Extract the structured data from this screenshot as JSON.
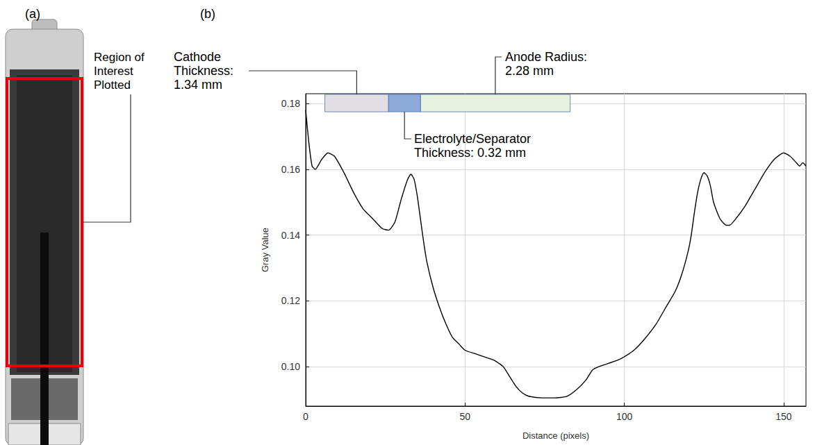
{
  "panel_labels": {
    "a": "(a)",
    "b": "(b)"
  },
  "region_note": "Region of\nInterest\nPlotted",
  "chart_data": {
    "type": "line",
    "x_label": "Distance (pixels)",
    "y_label": "Gray Value",
    "color": "#000000",
    "x": [
      0,
      1,
      2,
      3,
      5,
      7,
      9,
      12,
      15,
      18,
      21,
      24,
      26,
      28,
      30,
      32,
      33,
      34,
      35,
      36,
      37,
      38,
      40,
      42,
      44,
      46,
      48,
      50,
      53,
      56,
      59,
      62,
      64,
      66,
      68,
      70,
      74,
      78,
      82,
      85,
      88,
      90,
      92,
      95,
      98,
      100,
      103,
      106,
      110,
      113,
      116,
      118,
      120,
      121,
      122,
      123,
      124,
      125,
      126,
      127,
      128,
      130,
      132,
      133,
      135,
      138,
      141,
      144,
      147,
      150,
      152,
      154,
      155,
      156,
      157
    ],
    "values": [
      0.178,
      0.168,
      0.161,
      0.16,
      0.163,
      0.165,
      0.164,
      0.159,
      0.153,
      0.148,
      0.145,
      0.142,
      0.1415,
      0.144,
      0.151,
      0.157,
      0.1585,
      0.157,
      0.152,
      0.145,
      0.138,
      0.132,
      0.124,
      0.118,
      0.113,
      0.109,
      0.107,
      0.105,
      0.104,
      0.103,
      0.102,
      0.1,
      0.097,
      0.094,
      0.092,
      0.091,
      0.0905,
      0.0905,
      0.091,
      0.093,
      0.096,
      0.099,
      0.1,
      0.101,
      0.102,
      0.103,
      0.105,
      0.108,
      0.113,
      0.118,
      0.123,
      0.128,
      0.135,
      0.14,
      0.147,
      0.153,
      0.157,
      0.159,
      0.158,
      0.155,
      0.15,
      0.145,
      0.143,
      0.143,
      0.145,
      0.149,
      0.154,
      0.159,
      0.163,
      0.165,
      0.164,
      0.162,
      0.161,
      0.162,
      0.161
    ],
    "xlim": [
      0,
      157
    ],
    "ylim": [
      0.088,
      0.183
    ],
    "xticks": [
      0,
      50,
      100,
      150
    ],
    "yticks": [
      {
        "value": 0.1,
        "label": "0.10"
      },
      0.12,
      0.14,
      0.16,
      0.18
    ],
    "grid": true,
    "annotation_band_y": [
      0.1775,
      0.1828
    ],
    "annotations": [
      {
        "label": "Cathode\nThickness:\n1.34 mm",
        "x": [
          6,
          26
        ],
        "color": "#e2dfe4"
      },
      {
        "label": "Anode Radius:\n2.28 mm",
        "x": [
          36,
          83
        ],
        "color": "#e6f1df"
      },
      {
        "label": "Electrolyte/Separator\nThickness: 0.32 mm",
        "x": [
          26,
          36
        ],
        "color": "#8eaadb"
      }
    ]
  }
}
